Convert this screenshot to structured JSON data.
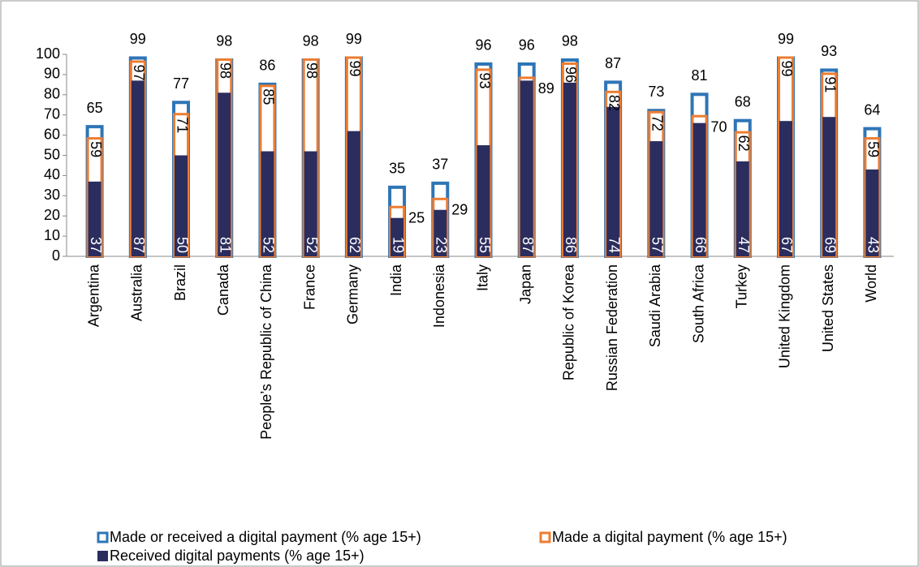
{
  "chart_data": {
    "type": "overlapping-bar",
    "categories": [
      "Argentina",
      "Australia",
      "Brazil",
      "Canada",
      "People’s Republic of China",
      "France",
      "Germany",
      "India",
      "Indonesia",
      "Italy",
      "Japan",
      "Republic of Korea",
      "Russian Federation",
      "Saudi Arabia",
      "South Africa",
      "Turkey",
      "United Kingdom",
      "United States",
      "World"
    ],
    "series": [
      {
        "name": "Made or received a digital payment (% age 15+)",
        "color": "#2e75b6",
        "values": [
          65,
          99,
          77,
          98,
          86,
          98,
          99,
          35,
          37,
          96,
          96,
          98,
          87,
          73,
          81,
          68,
          99,
          93,
          64
        ]
      },
      {
        "name": "Made a digital payment (% age 15+)",
        "color": "#ed7d31",
        "values": [
          59,
          97,
          71,
          98,
          85,
          98,
          99,
          25,
          29,
          93,
          89,
          96,
          82,
          72,
          70,
          62,
          99,
          91,
          59
        ]
      },
      {
        "name": "Received digital payments (% age 15+)",
        "color": "#2b2d5e",
        "values": [
          37,
          87,
          50,
          81,
          52,
          52,
          62,
          19,
          23,
          55,
          87,
          86,
          74,
          57,
          66,
          47,
          67,
          69,
          43
        ]
      }
    ],
    "ylim": [
      0,
      100
    ],
    "yticks": [
      0,
      10,
      20,
      30,
      40,
      50,
      60,
      70,
      80,
      90,
      100
    ],
    "grid": false
  }
}
